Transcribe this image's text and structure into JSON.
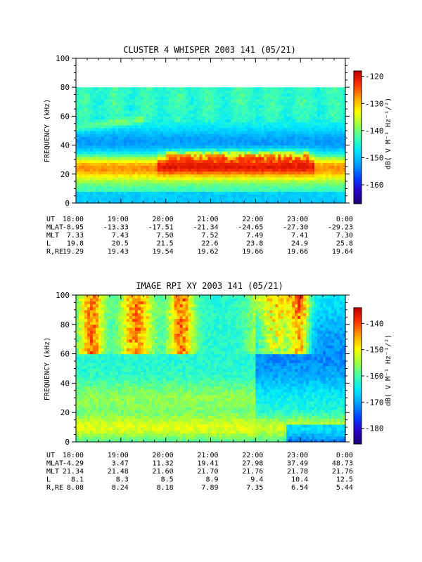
{
  "chart_data": [
    {
      "type": "heatmap",
      "title": "CLUSTER 4 WHISPER 2003 141 (05/21)",
      "ylabel": "FREQUENCY (kHz)",
      "colorbar_label": "dB( V M⁻¹ Hz⁻¹/²)",
      "colorbar_range": [
        -167,
        -118
      ],
      "colorbar_ticks": [
        "-120",
        "-130",
        "-140",
        "-150",
        "-160"
      ],
      "colorbar_tick_values": [
        -120,
        -130,
        -140,
        -150,
        -160
      ],
      "ylim": [
        0,
        100
      ],
      "y_ticks": [
        "0",
        "20",
        "40",
        "60",
        "80",
        "100"
      ],
      "y_tick_values": [
        0,
        20,
        40,
        60,
        80,
        100
      ],
      "data_frequency_max": 80,
      "x_time_ticks": [
        "18:00",
        "19:00",
        "20:00",
        "21:00",
        "22:00",
        "23:00",
        "0:00"
      ],
      "ephemeris": [
        {
          "label": "UT",
          "values": [
            "18:00",
            "19:00",
            "20:00",
            "21:00",
            "22:00",
            "23:00",
            "0:00"
          ]
        },
        {
          "label": "MLAT",
          "values": [
            "-8.95",
            "-13.33",
            "-17.51",
            "-21.34",
            "-24.65",
            "-27.30",
            "-29.23"
          ]
        },
        {
          "label": "MLT",
          "values": [
            "7.33",
            "7.43",
            "7.50",
            "7.52",
            "7.49",
            "7.41",
            "7.30"
          ]
        },
        {
          "label": "L",
          "values": [
            "19.8",
            "20.5",
            "21.5",
            "22.6",
            "23.8",
            "24.9",
            "25.8"
          ]
        },
        {
          "label": "R,RE",
          "values": [
            "19.29",
            "19.43",
            "19.54",
            "19.62",
            "19.66",
            "19.66",
            "19.64"
          ]
        }
      ]
    },
    {
      "type": "heatmap",
      "title": "IMAGE RPI XY 2003 141 (05/21)",
      "ylabel": "FREQUENCY (kHz)",
      "colorbar_label": "dB( V M⁻¹ Hz⁻¹/²)",
      "colorbar_range": [
        -186,
        -134
      ],
      "colorbar_ticks": [
        "-140",
        "-150",
        "-160",
        "-170",
        "-180"
      ],
      "colorbar_tick_values": [
        -140,
        -150,
        -160,
        -170,
        -180
      ],
      "ylim": [
        0,
        100
      ],
      "y_ticks": [
        "0",
        "20",
        "40",
        "60",
        "80",
        "100"
      ],
      "y_tick_values": [
        0,
        20,
        40,
        60,
        80,
        100
      ],
      "data_frequency_max": 100,
      "x_time_ticks": [
        "18:00",
        "19:00",
        "20:00",
        "21:00",
        "22:00",
        "23:00",
        "0:00"
      ],
      "ephemeris": [
        {
          "label": "UT",
          "values": [
            "18:00",
            "19:00",
            "20:00",
            "21:00",
            "22:00",
            "23:00",
            "0:00"
          ]
        },
        {
          "label": "MLAT",
          "values": [
            "-4.29",
            "3.47",
            "11.32",
            "19.41",
            "27.98",
            "37.49",
            "48.73"
          ]
        },
        {
          "label": "MLT",
          "values": [
            "21.34",
            "21.48",
            "21.60",
            "21.70",
            "21.76",
            "21.78",
            "21.76"
          ]
        },
        {
          "label": "L",
          "values": [
            "8.1",
            "8.3",
            "8.5",
            "8.9",
            "9.4",
            "10.4",
            "12.5"
          ]
        },
        {
          "label": "R,RE",
          "values": [
            "8.08",
            "8.24",
            "8.18",
            "7.89",
            "7.35",
            "6.54",
            "5.44"
          ]
        }
      ]
    }
  ],
  "colors": {
    "jet": [
      "#1a0070",
      "#2a00c8",
      "#0040ff",
      "#00a0ff",
      "#00e8ff",
      "#40ffb0",
      "#a0ff40",
      "#ffff00",
      "#ffa000",
      "#ff3000",
      "#c00000"
    ]
  }
}
